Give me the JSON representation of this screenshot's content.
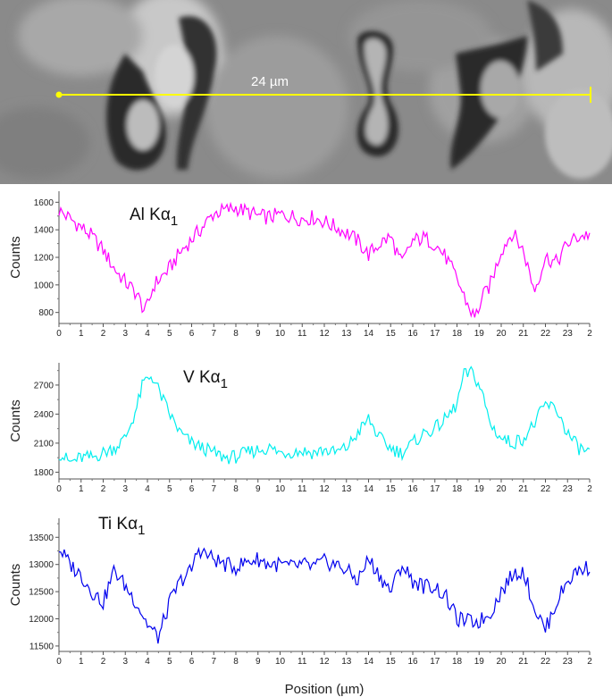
{
  "sem_image": {
    "scale_bar_label": "24 µm",
    "scale_bar_color": "#ffff00"
  },
  "colors": {
    "al": "#ff00ff",
    "v": "#00eeee",
    "ti": "#0000ee"
  },
  "chart_data": [
    {
      "type": "line",
      "element_label": "Al Kα",
      "element_subscript": "1",
      "xlabel": "",
      "ylabel": "Counts",
      "xlim": [
        0,
        24
      ],
      "ylim": [
        720,
        1680
      ],
      "yticks": [
        800,
        1000,
        1200,
        1400,
        1600
      ],
      "xticks": [
        "0",
        "1",
        "2",
        "3",
        "4",
        "5",
        "6",
        "7",
        "8",
        "9",
        "10",
        "11",
        "12",
        "13",
        "14",
        "15",
        "16",
        "17",
        "18",
        "19",
        "20",
        "21",
        "22",
        "23",
        "2"
      ],
      "series": [
        {
          "color": "#ff00ff",
          "x": [
            0,
            0.5,
            1,
            1.5,
            2,
            2.5,
            3,
            3.5,
            3.9,
            4.3,
            5,
            5.5,
            6,
            6.5,
            7,
            7.5,
            8,
            8.5,
            9,
            9.5,
            10,
            10.5,
            11,
            11.5,
            12,
            12.5,
            13,
            13.5,
            14,
            14.5,
            15,
            15.5,
            16,
            16.5,
            17,
            17.5,
            18,
            18.5,
            18.8,
            19.2,
            19.5,
            20,
            20.5,
            21,
            21.5,
            22,
            22.5,
            23,
            23.5,
            24
          ],
          "values": [
            1540,
            1480,
            1420,
            1350,
            1250,
            1120,
            1020,
            940,
            800,
            1000,
            1120,
            1240,
            1330,
            1420,
            1520,
            1540,
            1560,
            1530,
            1500,
            1490,
            1510,
            1500,
            1480,
            1490,
            1460,
            1420,
            1380,
            1320,
            1220,
            1300,
            1350,
            1150,
            1320,
            1340,
            1300,
            1200,
            1040,
            850,
            760,
            920,
            1000,
            1250,
            1380,
            1250,
            960,
            1200,
            1160,
            1300,
            1350,
            1370
          ]
        }
      ]
    },
    {
      "type": "line",
      "element_label": "V Kα",
      "element_subscript": "1",
      "xlabel": "",
      "ylabel": "Counts",
      "xlim": [
        0,
        24
      ],
      "ylim": [
        1730,
        2930
      ],
      "yticks": [
        1800,
        2100,
        2400,
        2700
      ],
      "xticks": [
        "0",
        "1",
        "2",
        "3",
        "4",
        "5",
        "6",
        "7",
        "8",
        "9",
        "10",
        "11",
        "12",
        "13",
        "14",
        "15",
        "16",
        "17",
        "18",
        "19",
        "20",
        "21",
        "22",
        "23",
        "2"
      ],
      "series": [
        {
          "color": "#00eeee",
          "x": [
            0,
            0.5,
            1,
            1.5,
            2,
            2.5,
            3,
            3.5,
            3.8,
            4.2,
            4.6,
            5,
            5.5,
            6,
            6.5,
            7,
            7.5,
            8,
            8.5,
            9,
            9.5,
            10,
            10.5,
            11,
            11.5,
            12,
            12.5,
            13,
            13.5,
            14,
            14.5,
            15,
            15.5,
            16,
            16.5,
            17,
            17.5,
            18,
            18.3,
            18.7,
            19.1,
            19.5,
            20,
            20.5,
            21,
            21.5,
            22,
            22.5,
            23,
            23.5,
            24
          ],
          "values": [
            2000,
            1900,
            1950,
            1950,
            2000,
            2050,
            2150,
            2450,
            2720,
            2800,
            2600,
            2400,
            2200,
            2100,
            2050,
            2000,
            1950,
            1960,
            2000,
            2030,
            2050,
            2000,
            2010,
            2020,
            2000,
            2030,
            2000,
            2050,
            2200,
            2350,
            2150,
            2050,
            2000,
            2100,
            2200,
            2250,
            2350,
            2500,
            2800,
            2830,
            2650,
            2300,
            2150,
            2100,
            2150,
            2300,
            2500,
            2450,
            2200,
            2050,
            2000
          ]
        }
      ]
    },
    {
      "type": "line",
      "element_label": "Ti Kα",
      "element_subscript": "1",
      "xlabel": "Position (µm)",
      "ylabel": "Counts",
      "xlim": [
        0,
        24
      ],
      "ylim": [
        11400,
        13850
      ],
      "yticks": [
        11500,
        12000,
        12500,
        13000,
        13500
      ],
      "xticks": [
        "0",
        "1",
        "2",
        "3",
        "4",
        "5",
        "6",
        "7",
        "8",
        "9",
        "10",
        "11",
        "12",
        "13",
        "14",
        "15",
        "16",
        "17",
        "18",
        "19",
        "20",
        "21",
        "22",
        "23",
        "2"
      ],
      "series": [
        {
          "color": "#0000ee",
          "x": [
            0,
            0.5,
            1,
            1.5,
            2,
            2.5,
            3,
            3.5,
            4,
            4.5,
            5,
            5.5,
            6,
            6.3,
            6.6,
            7,
            7.5,
            8,
            8.5,
            9,
            9.5,
            10,
            10.5,
            11,
            11.5,
            12,
            12.5,
            13,
            13.5,
            14,
            14.5,
            15,
            15.5,
            16,
            16.5,
            17,
            17.5,
            18,
            18.5,
            19,
            19.5,
            20,
            20.5,
            21,
            21.5,
            22,
            22.5,
            23,
            23.5,
            24
          ],
          "values": [
            13300,
            13000,
            12800,
            12500,
            12300,
            12900,
            12600,
            12300,
            11900,
            11650,
            12300,
            12700,
            12900,
            13300,
            13200,
            13100,
            13000,
            12950,
            13050,
            13100,
            13000,
            13000,
            12950,
            13000,
            12950,
            13050,
            13000,
            12900,
            12700,
            13100,
            12800,
            12500,
            13000,
            12700,
            12600,
            12600,
            12400,
            12000,
            11950,
            11950,
            12100,
            12500,
            12800,
            12900,
            12200,
            11800,
            12300,
            12700,
            12900,
            12950
          ]
        }
      ]
    }
  ]
}
